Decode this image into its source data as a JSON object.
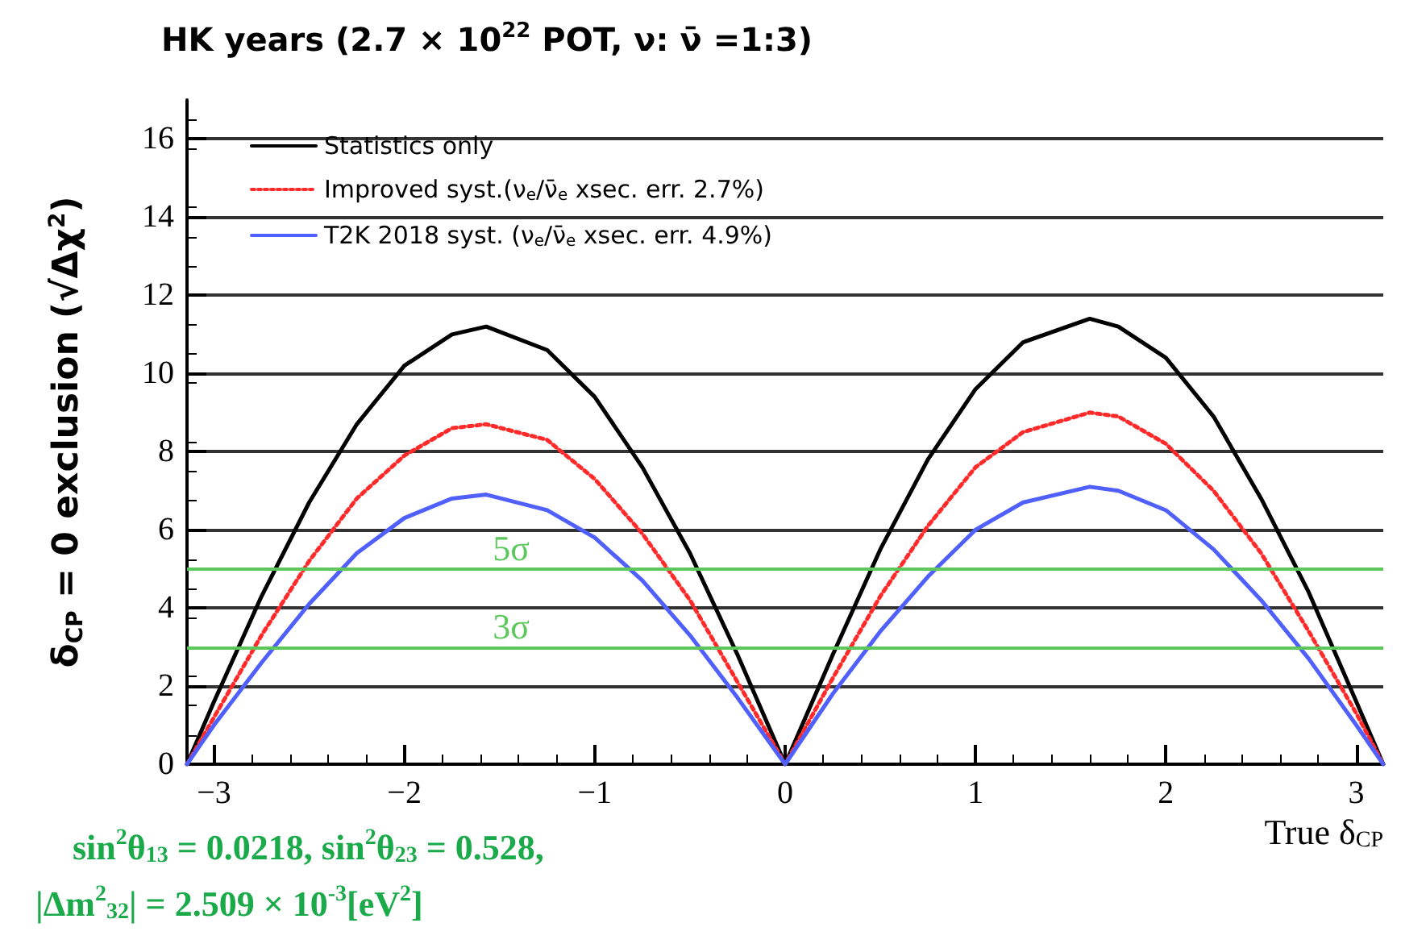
{
  "chart_data": {
    "type": "line",
    "title": "HK years (2.7 × 10$^{22}$ POT, ν: ν̄ =1:3)",
    "xlabel": "True δ$_{CP}$",
    "ylabel": "δ$_{CP}$ = 0 exclusion (√Δχ$^{2}$)",
    "x": [
      -3.1416,
      -3,
      -2.75,
      -2.5,
      -2.25,
      -2,
      -1.75,
      -1.57,
      -1.25,
      -1,
      -0.75,
      -0.5,
      -0.25,
      0,
      0.25,
      0.5,
      0.75,
      1,
      1.25,
      1.6,
      1.75,
      2,
      2.25,
      2.5,
      2.75,
      3,
      3.1416
    ],
    "series": [
      {
        "name": "Statistics only",
        "color": "#000000",
        "line_style": "solid",
        "values": [
          0,
          1.6,
          4.3,
          6.7,
          8.7,
          10.2,
          11.0,
          11.2,
          10.6,
          9.4,
          7.6,
          5.4,
          2.8,
          0,
          2.8,
          5.5,
          7.8,
          9.6,
          10.8,
          11.4,
          11.2,
          10.4,
          8.9,
          6.8,
          4.4,
          1.6,
          0
        ]
      },
      {
        "name": "Improved syst.(ν$_{e}$/ν̄$_{e}$ xsec. err. 2.7%)",
        "color": "#ff2a2a",
        "line_style": "dotted",
        "values": [
          0,
          1.2,
          3.3,
          5.2,
          6.8,
          7.9,
          8.6,
          8.7,
          8.3,
          7.3,
          5.9,
          4.2,
          2.1,
          0,
          2.2,
          4.3,
          6.1,
          7.6,
          8.5,
          9.0,
          8.9,
          8.2,
          7.0,
          5.4,
          3.4,
          1.3,
          0
        ]
      },
      {
        "name": "T2K 2018 syst. (ν$_{e}$/ν̄$_{e}$ xsec. err. 4.9%)",
        "color": "#5060ff",
        "line_style": "solid",
        "values": [
          0,
          1.0,
          2.6,
          4.1,
          5.4,
          6.3,
          6.8,
          6.9,
          6.5,
          5.8,
          4.7,
          3.3,
          1.7,
          0,
          1.8,
          3.4,
          4.8,
          6.0,
          6.7,
          7.1,
          7.0,
          6.5,
          5.5,
          4.2,
          2.7,
          1.0,
          0
        ]
      }
    ],
    "xlim": [
      -3.1416,
      3.1416
    ],
    "xticks": [
      -3,
      -2,
      -1,
      0,
      1,
      2,
      3
    ],
    "ylim": [
      0,
      17
    ],
    "yticks": [
      0,
      2,
      4,
      6,
      8,
      10,
      12,
      14,
      16
    ],
    "grid": "y",
    "legend": "top left",
    "marker": "none",
    "ref_lines": [
      {
        "axis": "y",
        "value": 5,
        "label": "5σ",
        "color": "#5cc85c"
      },
      {
        "axis": "y",
        "value": 3,
        "label": "3σ",
        "color": "#5cc85c"
      }
    ],
    "annotations": [
      "sin$^{2}$θ$_{13}$ = 0.0218, sin$^{2}$θ$_{23}$ = 0.528,",
      "|Δm$^{2}$$_{32}$| = 2.509 × 10$^{-3}$[eV$^{2}$]"
    ]
  }
}
